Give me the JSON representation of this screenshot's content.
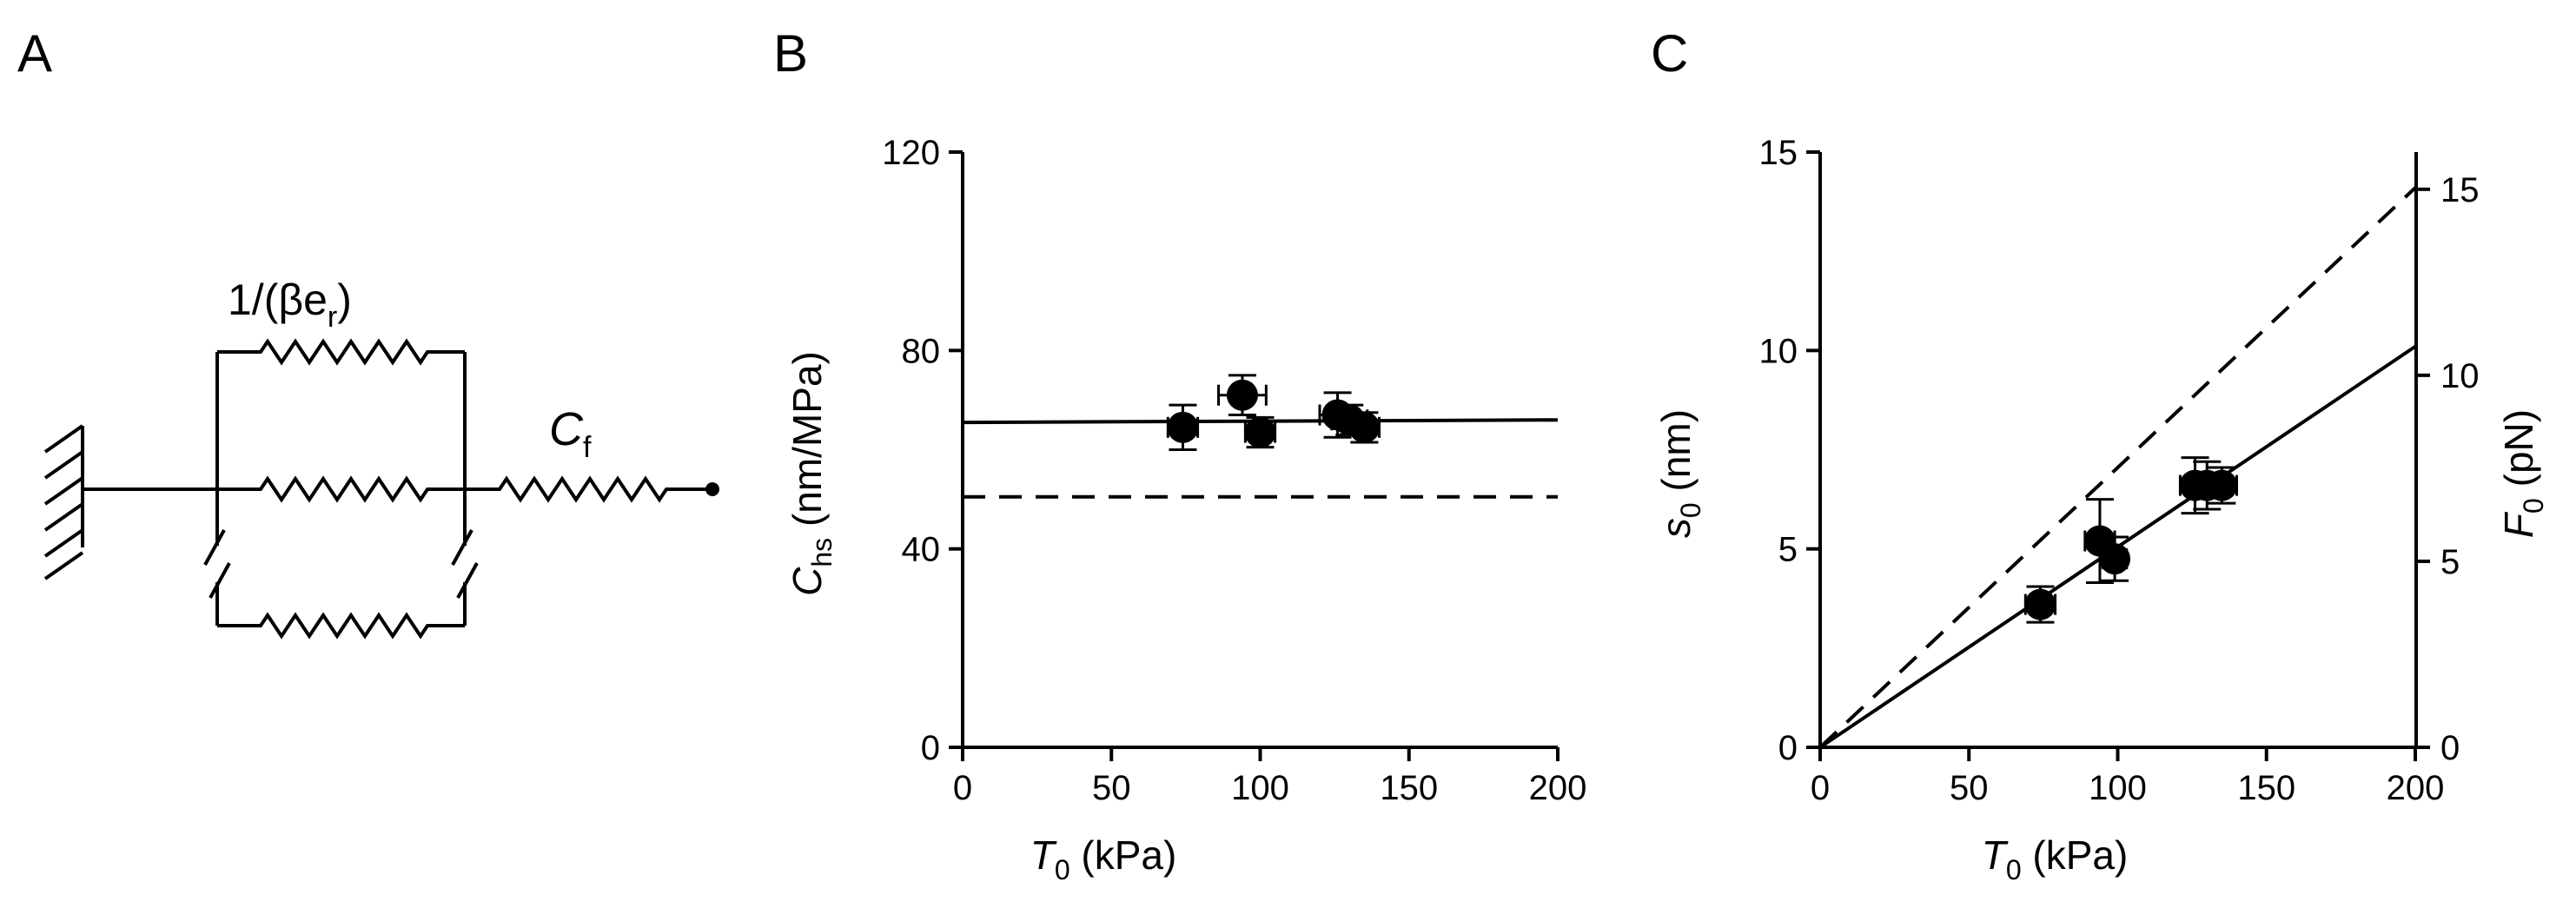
{
  "panel_labels": [
    "A",
    "B",
    "C"
  ],
  "diagram": {
    "label_parallel": "1/(βe",
    "label_parallel_sub": "r",
    "label_parallel_close": ")",
    "label_series": "C",
    "label_series_sub": "f"
  },
  "chart_data": [
    {
      "panel": "B",
      "type": "scatter",
      "xlabel": "T",
      "xlabel_sub": "0",
      "xlabel_unit": " (kPa)",
      "ylabel": "C",
      "ylabel_sub": "hs",
      "ylabel_unit": " (nm/MPa)",
      "xlim": [
        0,
        200
      ],
      "ylim": [
        0,
        120
      ],
      "xticks": [
        0,
        50,
        100,
        150,
        200
      ],
      "yticks": [
        0,
        40,
        80,
        120
      ],
      "points": [
        {
          "x": 74,
          "y": 64.5,
          "xerr": 5,
          "yerr": 4.5
        },
        {
          "x": 94,
          "y": 71,
          "xerr": 8,
          "yerr": 4
        },
        {
          "x": 100,
          "y": 63.5,
          "xerr": 5,
          "yerr": 3
        },
        {
          "x": 126,
          "y": 67,
          "xerr": 6,
          "yerr": 4.5
        },
        {
          "x": 130,
          "y": 66,
          "xerr": 6,
          "yerr": 3
        },
        {
          "x": 135,
          "y": 64.5,
          "xerr": 5,
          "yerr": 3
        }
      ],
      "lines": [
        {
          "style": "solid",
          "x": [
            0,
            200
          ],
          "y": [
            65.5,
            66
          ]
        },
        {
          "style": "dashed",
          "x": [
            0,
            200
          ],
          "y": [
            50.5,
            50.5
          ]
        }
      ]
    },
    {
      "panel": "C",
      "type": "scatter",
      "xlabel": "T",
      "xlabel_sub": "0",
      "xlabel_unit": " (kPa)",
      "ylabel": "s",
      "ylabel_sub": "0",
      "ylabel_unit": " (nm)",
      "y2label": "F",
      "y2label_sub": "0",
      "y2label_unit": " (pN)",
      "xlim": [
        0,
        200
      ],
      "ylim": [
        0,
        15
      ],
      "y2lim": [
        0,
        16
      ],
      "xticks": [
        0,
        50,
        100,
        150,
        200
      ],
      "yticks": [
        0,
        5,
        10,
        15
      ],
      "y2ticks": [
        0,
        5,
        10,
        15
      ],
      "points": [
        {
          "x": 74,
          "y": 3.6,
          "xerr": 5,
          "yerr": 0.45
        },
        {
          "x": 94,
          "y": 5.2,
          "xerr": 5,
          "yerr": 1.05
        },
        {
          "x": 99,
          "y": 4.75,
          "xerr": 4,
          "yerr": 0.55
        },
        {
          "x": 126,
          "y": 6.6,
          "xerr": 5,
          "yerr": 0.7
        },
        {
          "x": 130,
          "y": 6.6,
          "xerr": 5,
          "yerr": 0.6
        },
        {
          "x": 135,
          "y": 6.6,
          "xerr": 5,
          "yerr": 0.45
        }
      ],
      "lines": [
        {
          "style": "solid",
          "x": [
            0,
            200
          ],
          "y": [
            0,
            10.1
          ]
        },
        {
          "style": "dashed",
          "x": [
            0,
            200
          ],
          "y": [
            0,
            14.1
          ]
        }
      ]
    }
  ]
}
